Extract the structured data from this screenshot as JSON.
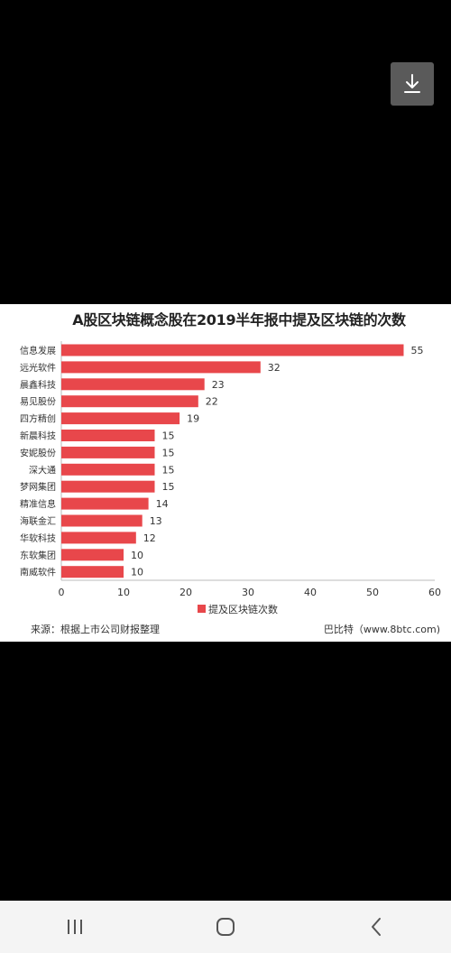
{
  "chart_data": {
    "type": "bar",
    "orientation": "horizontal",
    "title": "A股区块链概念股在2019半年报中提及区块链的次数",
    "categories": [
      "信息发展",
      "远光软件",
      "晨鑫科技",
      "易见股份",
      "四方精创",
      "新晨科技",
      "安妮股份",
      "深大通",
      "梦网集团",
      "精准信息",
      "海联金汇",
      "华软科技",
      "东软集团",
      "南威软件"
    ],
    "series": [
      {
        "name": "提及区块链次数",
        "values": [
          55,
          32,
          23,
          22,
          19,
          15,
          15,
          15,
          15,
          14,
          13,
          12,
          10,
          10
        ],
        "color": "#e8474b"
      }
    ],
    "xlim": [
      0,
      60
    ],
    "xticks": [
      "0",
      "10",
      "20",
      "30",
      "40",
      "50",
      "60"
    ],
    "xlabel": "",
    "ylabel": "",
    "grid": false,
    "legend_position": "bottom-center",
    "show_data_labels": true
  },
  "footer": {
    "source": "来源：根据上市公司财报整理",
    "brand": "巴比特（www.8btc.com)"
  },
  "icons": {
    "download": "download-icon",
    "recent_apps": "recent-apps-icon",
    "home": "home-icon",
    "back": "back-icon"
  },
  "colors": {
    "bar": "#e8474b",
    "background": "#000000",
    "nav_bar": "#f4f4f4"
  }
}
